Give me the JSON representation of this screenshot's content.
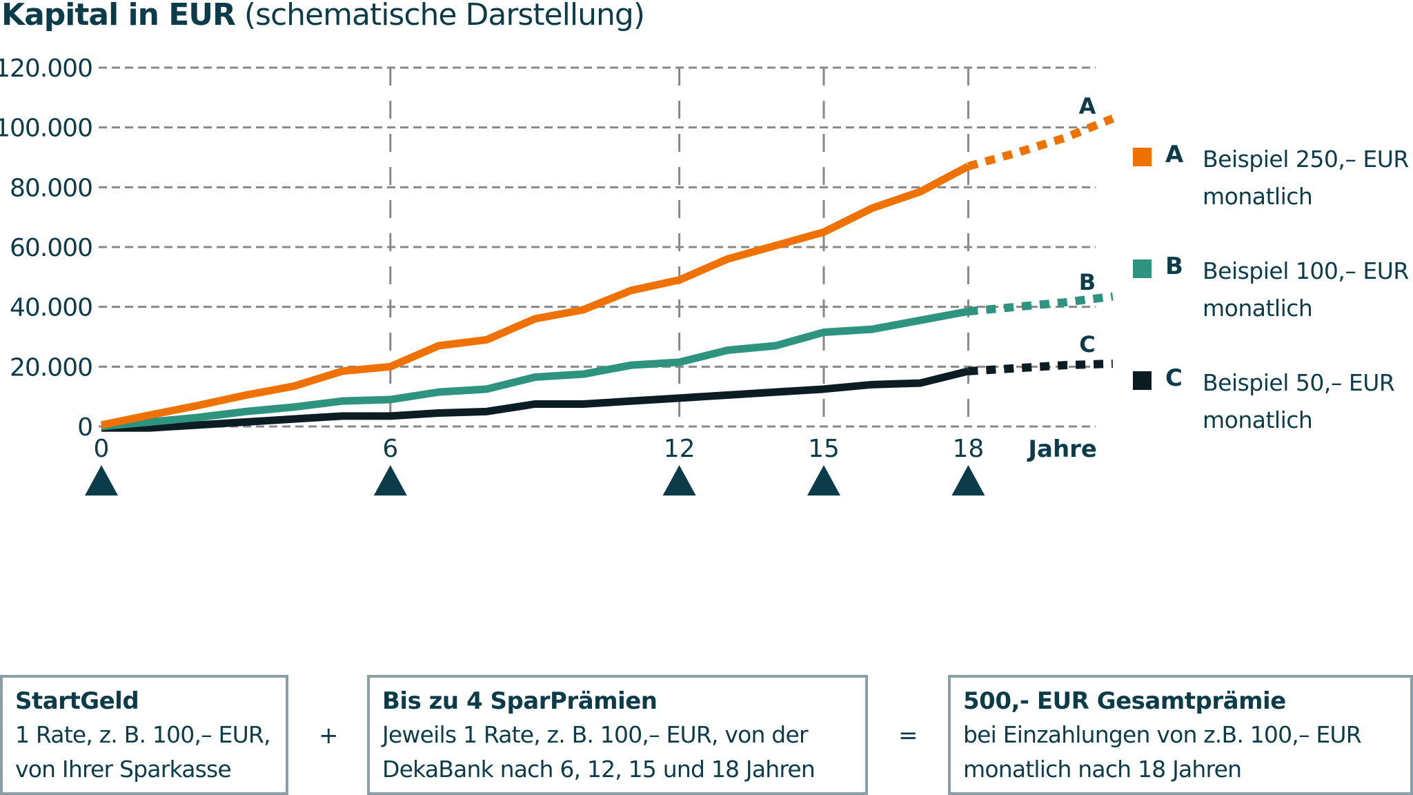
{
  "title": {
    "bold": "Kapital in EUR",
    "normal": "(schematische Darstellung)"
  },
  "colors": {
    "A": "#ef7100",
    "B": "#2e9480",
    "C": "#0b1c22",
    "text": "#0c3b4a",
    "grid": "#888888",
    "box_border": "#8a9ea8"
  },
  "legend": [
    {
      "letter": "A",
      "text": "Beispiel 250,– EUR monatlich",
      "color": "#ef7100"
    },
    {
      "letter": "B",
      "text": "Beispiel 100,– EUR monatlich",
      "color": "#2e9480"
    },
    {
      "letter": "C",
      "text": "Beispiel 50,– EUR monatlich",
      "color": "#0b1c22"
    }
  ],
  "boxes": [
    {
      "title": "StartGeld",
      "line1": "1 Rate, z. B. 100,– EUR,",
      "line2": "von Ihrer Sparkasse"
    },
    {
      "title": "Bis zu 4 SparPrämien",
      "line1": "Jeweils 1 Rate, z. B. 100,– EUR, von der",
      "line2": "DekaBank nach 6, 12, 15 und 18 Jahren"
    },
    {
      "title": "500,- EUR Gesamtprämie",
      "line1": "bei Einzahlungen von z.B. 100,– EUR",
      "line2": "monatlich nach 18 Jahren"
    }
  ],
  "operators": {
    "plus": "+",
    "equals": "="
  },
  "chart_data": {
    "type": "line",
    "title": "Kapital in EUR (schematische Darstellung)",
    "xlabel": "Jahre",
    "ylabel": "Kapital in EUR",
    "ylim": [
      0,
      120000
    ],
    "xlim": [
      0,
      21
    ],
    "y_ticks": [
      "0",
      "20.000",
      "40.000",
      "60.000",
      "80.000",
      "100.000",
      "120.000"
    ],
    "x_ticks": [
      "0",
      "6",
      "12",
      "15",
      "18"
    ],
    "markers_at_years": [
      0,
      6,
      12,
      15,
      18
    ],
    "grid": true,
    "legend_position": "right",
    "x": [
      0,
      1,
      2,
      3,
      4,
      5,
      6,
      7,
      8,
      9,
      10,
      11,
      12,
      13,
      14,
      15,
      16,
      17,
      18
    ],
    "series": [
      {
        "name": "A Beispiel 250,– EUR monatlich",
        "label": "A",
        "color": "#ef7100",
        "values": [
          500,
          3800,
          7000,
          10500,
          13500,
          18500,
          20000,
          27000,
          29000,
          36000,
          39000,
          45500,
          49000,
          56000,
          60500,
          65000,
          73000,
          78500,
          87000
        ],
        "projection_x": [
          18,
          19,
          20,
          21
        ],
        "projection_values": [
          87000,
          91500,
          96500,
          103000
        ]
      },
      {
        "name": "B Beispiel 100,– EUR monatlich",
        "label": "B",
        "color": "#2e9480",
        "values": [
          0,
          1500,
          3000,
          5000,
          6500,
          8500,
          9000,
          11500,
          12500,
          16500,
          17500,
          20500,
          21500,
          25500,
          27000,
          31500,
          32500,
          35500,
          38500
        ],
        "projection_x": [
          18,
          19,
          20,
          21
        ],
        "projection_values": [
          38500,
          40000,
          41500,
          43500
        ]
      },
      {
        "name": "C Beispiel 50,– EUR monatlich",
        "label": "C",
        "color": "#0b1c22",
        "values": [
          -500,
          -500,
          500,
          1500,
          2500,
          3500,
          3500,
          4500,
          5000,
          7500,
          7500,
          8500,
          9500,
          10500,
          11500,
          12500,
          14000,
          14500,
          18500
        ],
        "projection_x": [
          18,
          19,
          20,
          21
        ],
        "projection_values": [
          18500,
          19500,
          20500,
          21000
        ]
      }
    ]
  }
}
